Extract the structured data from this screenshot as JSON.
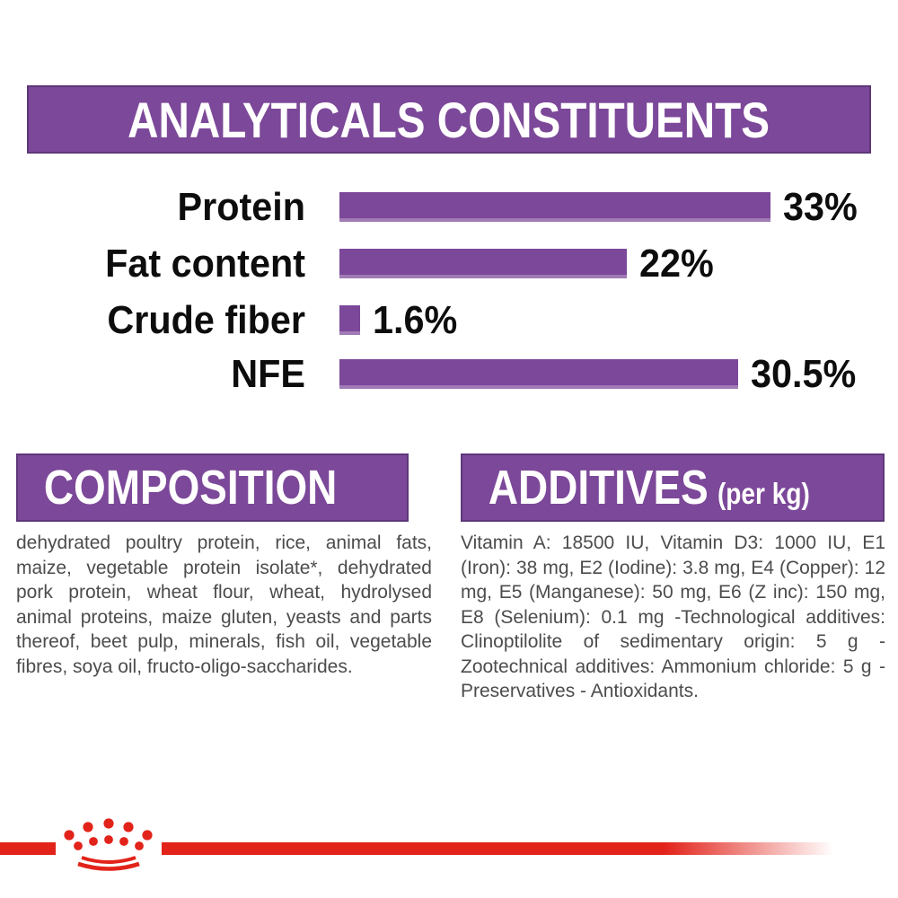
{
  "banner": {
    "title": "ANALYTICALS CONSTITUENTS"
  },
  "chart_data": {
    "type": "bar",
    "orientation": "horizontal",
    "title": "ANALYTICALS CONSTITUENTS",
    "categories": [
      "Protein",
      "Fat content",
      "Crude fiber",
      "NFE"
    ],
    "values": [
      33,
      22,
      1.6,
      30.5
    ],
    "value_labels": [
      "33%",
      "22%",
      "1.6%",
      "30.5%"
    ],
    "unit": "%",
    "xlim": [
      0,
      35
    ],
    "grid": false,
    "legend": "none",
    "bar_color": "#7c4899"
  },
  "sections": {
    "composition": {
      "title": "COMPOSITION",
      "body": "dehydrated poultry protein, rice, animal fats, maize, vegetable protein isolate*, dehydrated pork protein, wheat flour, wheat, hydrolysed animal proteins, maize gluten, yeasts and parts thereof, beet pulp, minerals, fish oil, vegetable fibres, soya oil, fructo-oligo-saccharides."
    },
    "additives": {
      "title": "ADDITIVES",
      "unit": "(per kg)",
      "body": "Vitamin A: 18500 IU, Vitamin D3: 1000 IU, E1 (Iron): 38 mg, E2 (Iodine): 3.8 mg, E4 (Copper): 12 mg, E5 (Manganese): 50 mg, E6 (Z inc): 150 mg, E8 (Selenium): 0.1 mg -Technological additives: Clinoptilolite of sedimentary origin: 5 g - Zootechnical additives: Ammonium chloride: 5 g - Preservatives - Antioxidants."
    }
  },
  "footer": {
    "logo": "royal-canin-crown"
  },
  "colors": {
    "purple": "#7c4899",
    "red": "#e2231a",
    "body_text": "#4c4c4e",
    "heading_text": "#0d0d0d",
    "background": "#ffffff"
  }
}
